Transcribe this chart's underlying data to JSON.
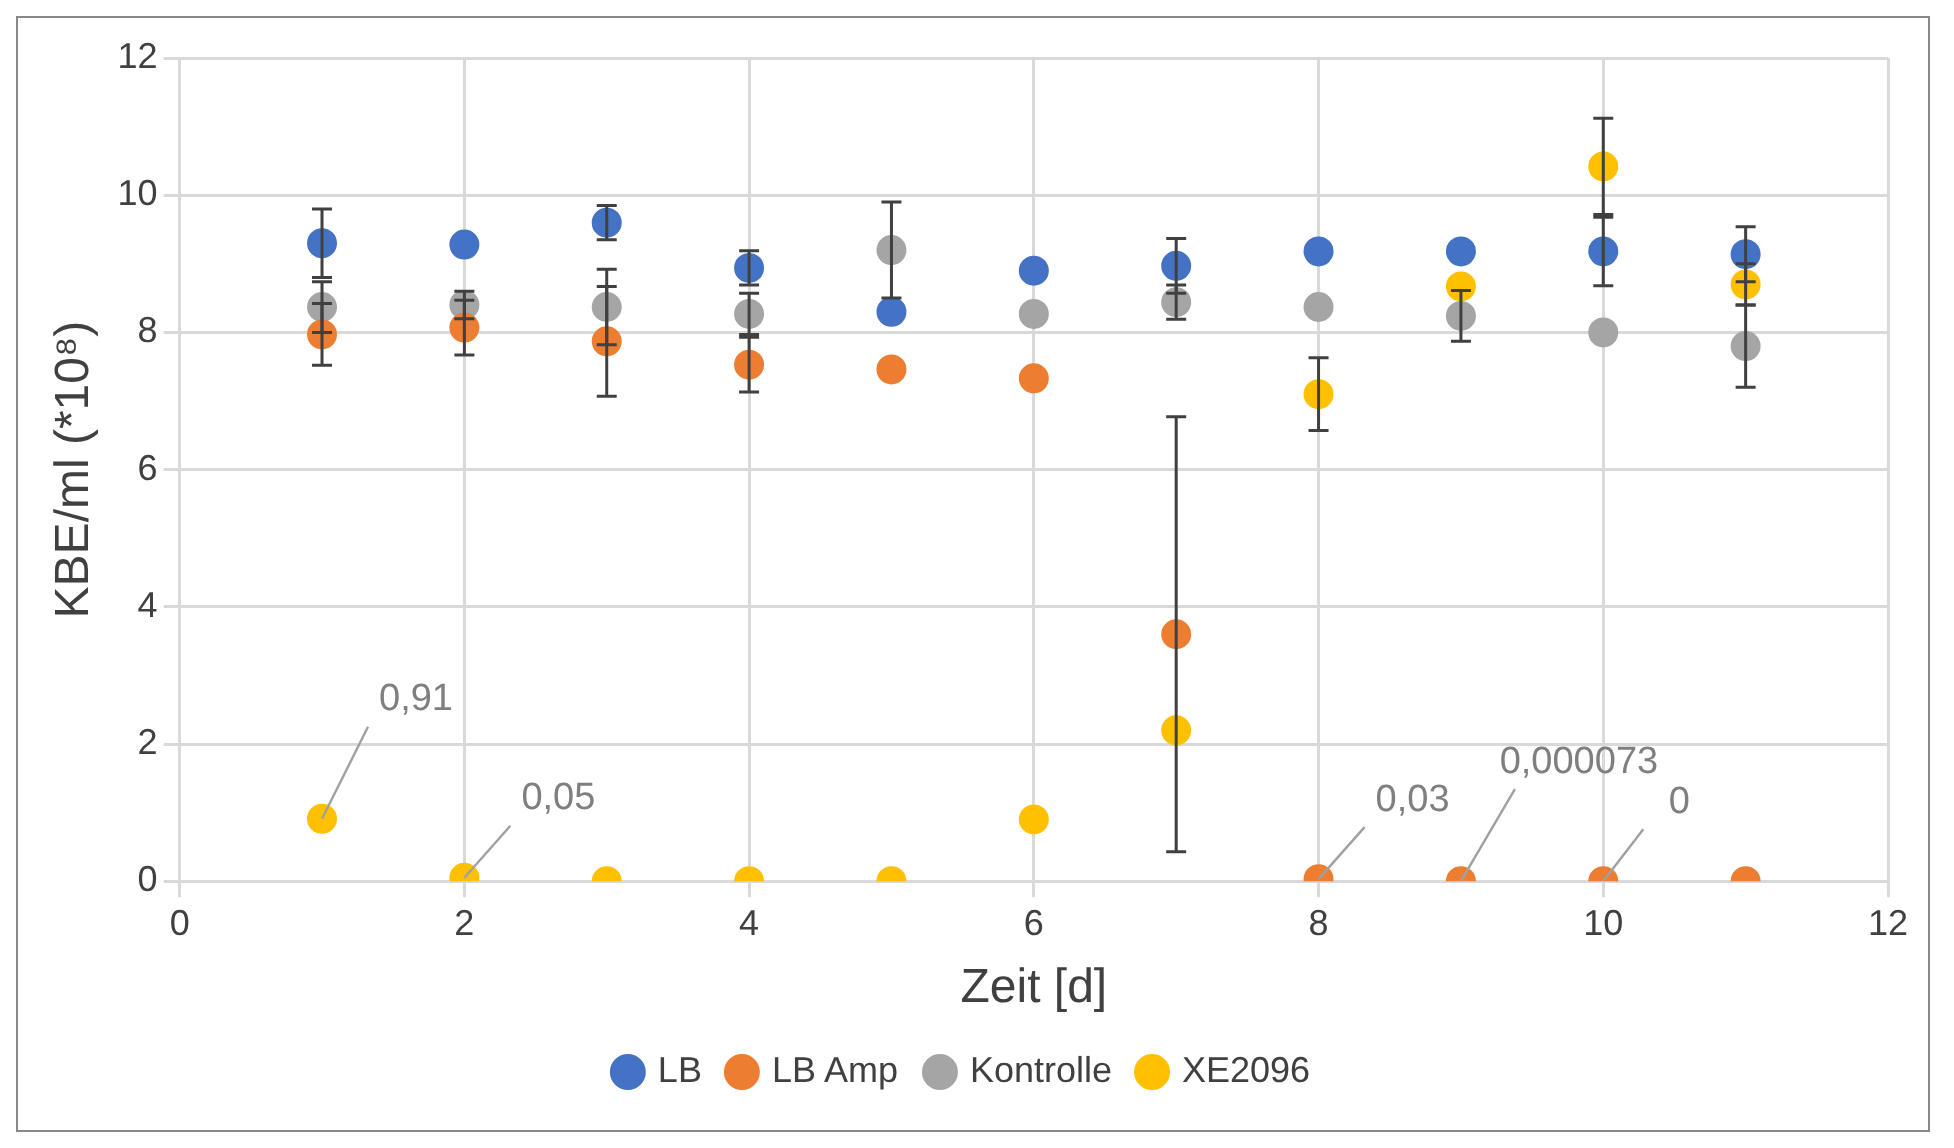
{
  "chart_data": {
    "type": "scatter",
    "xlabel": "Zeit [d]",
    "ylabel": "KBE/ml (*10⁸)",
    "x": [
      1,
      2,
      3,
      4,
      5,
      6,
      7,
      8,
      9,
      10,
      11
    ],
    "xlim": [
      0,
      12
    ],
    "xticks": [
      0,
      2,
      4,
      6,
      8,
      10,
      12
    ],
    "ylim": [
      0,
      12
    ],
    "yticks": [
      0,
      2,
      4,
      6,
      8,
      10,
      12
    ],
    "grid": true,
    "legend": "bottom",
    "marker": "circle",
    "series": [
      {
        "name": "LB",
        "color": "#4472c4",
        "values": [
          9.3,
          9.28,
          9.6,
          8.94,
          8.3,
          8.9,
          8.97,
          9.18,
          9.18,
          9.18,
          9.14
        ],
        "errors": [
          0.5,
          null,
          0.25,
          0.25,
          null,
          null,
          0.4,
          null,
          null,
          0.5,
          0.4
        ]
      },
      {
        "name": "LB Amp",
        "color": "#ed7d31",
        "values": [
          7.97,
          8.07,
          7.87,
          7.53,
          7.46,
          7.33,
          3.6,
          0.03,
          7.3e-05,
          0,
          0
        ],
        "errors": [
          0.45,
          0.4,
          0.8,
          0.4,
          null,
          null,
          3.17,
          null,
          null,
          null,
          null
        ],
        "value_labels": [
          null,
          null,
          null,
          null,
          null,
          null,
          null,
          "0,03",
          "0,000073",
          "0",
          null
        ]
      },
      {
        "name": "Kontrolle",
        "color": "#a5a5a5",
        "values": [
          8.37,
          8.4,
          8.37,
          8.27,
          9.2,
          8.27,
          8.44,
          8.37,
          8.24,
          8.0,
          7.8
        ],
        "errors": [
          0.37,
          0.2,
          0.55,
          0.3,
          0.7,
          null,
          0.25,
          null,
          0.37,
          null,
          0.6
        ]
      },
      {
        "name": "XE2096",
        "color": "#ffc000",
        "values": [
          0.91,
          0.05,
          0,
          0,
          0,
          0.9,
          2.2,
          7.1,
          8.67,
          10.42,
          8.7
        ],
        "errors": [
          null,
          null,
          null,
          null,
          null,
          null,
          null,
          0.53,
          null,
          0.7,
          0.3
        ],
        "value_labels": [
          "0,91",
          "0,05",
          null,
          null,
          null,
          null,
          null,
          null,
          null,
          null,
          null
        ]
      }
    ]
  }
}
